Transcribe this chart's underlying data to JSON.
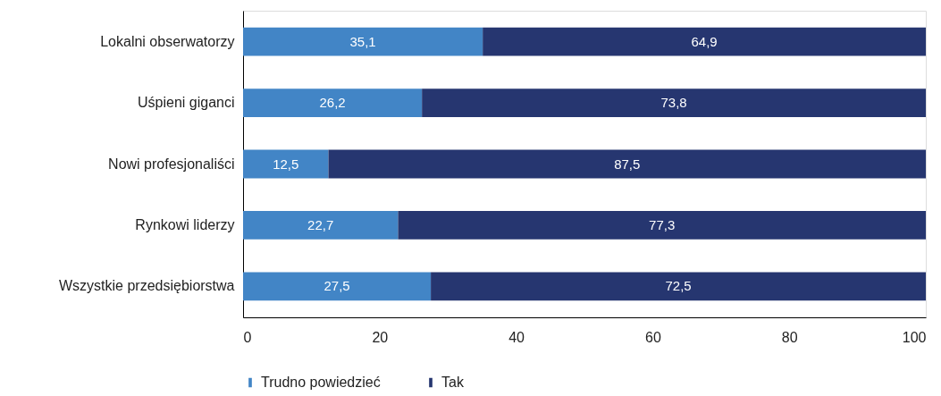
{
  "chart_data": {
    "type": "bar",
    "orientation": "horizontal",
    "stacked": true,
    "categories": [
      "Lokalni obserwatorzy",
      "Uśpieni giganci",
      "Nowi profesjonaliści",
      "Rynkowi liderzy",
      "Wszystkie przedsiębiorstwa"
    ],
    "series": [
      {
        "name": "Trudno powiedzieć",
        "color": "#4285c6",
        "values": [
          35.1,
          26.2,
          12.5,
          22.7,
          27.5
        ],
        "value_labels": [
          "35,1",
          "26,2",
          "12,5",
          "22,7",
          "27,5"
        ]
      },
      {
        "name": "Tak",
        "color": "#263670",
        "values": [
          64.9,
          73.8,
          87.5,
          77.3,
          72.5
        ],
        "value_labels": [
          "64,9",
          "73,8",
          "87,5",
          "77,3",
          "72,5"
        ]
      }
    ],
    "xlim": [
      0,
      100
    ],
    "xticks": [
      0,
      20,
      40,
      60,
      80,
      100
    ],
    "legend": "bottom"
  }
}
